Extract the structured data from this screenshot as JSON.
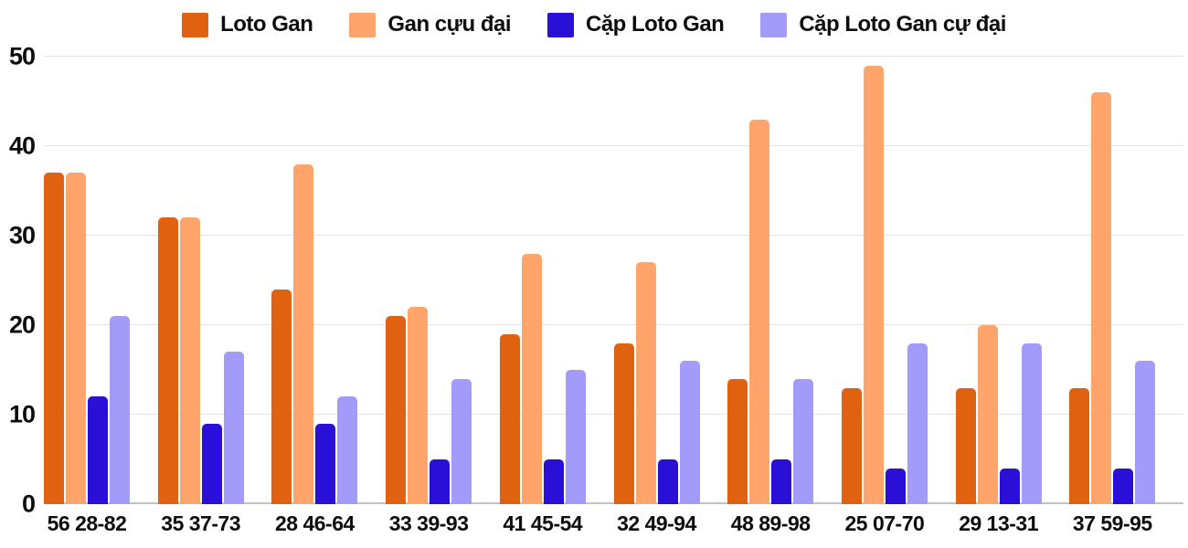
{
  "chart_data": {
    "type": "bar",
    "title": "",
    "xlabel": "",
    "ylabel": "",
    "ylim": [
      0,
      50
    ],
    "yticks": [
      0,
      10,
      20,
      30,
      40,
      50
    ],
    "grid": true,
    "legend_position": "top",
    "grid_color": "#e4e4e4",
    "axis_color": "#c2c2c2",
    "text_color": "#0d0d0d",
    "categories": [
      "56 28-82",
      "35 37-73",
      "28 46-64",
      "33 39-93",
      "41 45-54",
      "32 49-94",
      "48 89-98",
      "25 07-70",
      "29 13-31",
      "37 59-95"
    ],
    "series": [
      {
        "name": "Loto Gan",
        "color": "#e06210",
        "values": [
          37,
          32,
          24,
          21,
          19,
          18,
          14,
          13,
          13,
          13
        ]
      },
      {
        "name": "Gan cựu đại",
        "color": "#ffa46a",
        "values": [
          37,
          32,
          38,
          22,
          28,
          27,
          43,
          49,
          20,
          46
        ]
      },
      {
        "name": "Cặp Loto Gan",
        "color": "#2a10d6",
        "values": [
          12,
          9,
          9,
          5,
          5,
          5,
          5,
          4,
          4,
          4
        ]
      },
      {
        "name": "Cặp Loto Gan cự đại",
        "color": "#a29bfa",
        "values": [
          21,
          17,
          12,
          14,
          15,
          16,
          14,
          18,
          18,
          16
        ]
      }
    ]
  }
}
